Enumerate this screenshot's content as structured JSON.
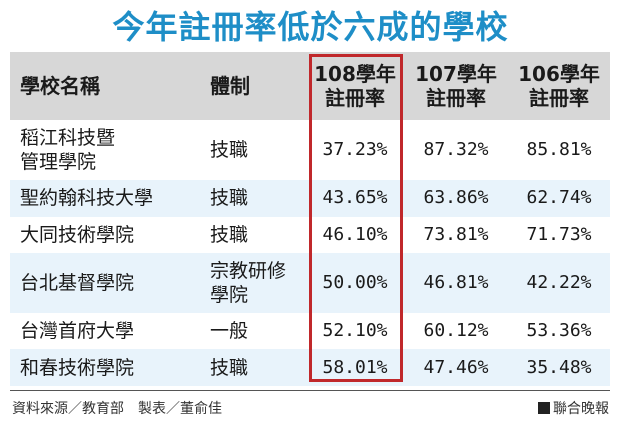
{
  "title": "今年註冊率低於六成的學校",
  "table": {
    "headers": {
      "name": "學校名稱",
      "type": "體制",
      "y108": "108學年\n註冊率",
      "y107": "107學年\n註冊率",
      "y106": "106學年\n註冊率"
    },
    "rows": [
      {
        "name": "稻江科技暨\n管理學院",
        "type": "技職",
        "y108": "37.23%",
        "y107": "87.32%",
        "y106": "85.81%"
      },
      {
        "name": "聖約翰科技大學",
        "type": "技職",
        "y108": "43.65%",
        "y107": "63.86%",
        "y106": "62.74%"
      },
      {
        "name": "大同技術學院",
        "type": "技職",
        "y108": "46.10%",
        "y107": "73.81%",
        "y106": "71.73%"
      },
      {
        "name": "台北基督學院",
        "type": "宗教研修\n學院",
        "y108": "50.00%",
        "y107": "46.81%",
        "y106": "42.22%"
      },
      {
        "name": "台灣首府大學",
        "type": "一般",
        "y108": "52.10%",
        "y107": "60.12%",
        "y106": "53.36%"
      },
      {
        "name": "和春技術學院",
        "type": "技職",
        "y108": "58.01%",
        "y107": "47.46%",
        "y106": "35.48%"
      }
    ]
  },
  "footer": {
    "source": "資料來源／教育部　製表／董俞佳",
    "brand": "聯合晚報"
  },
  "colors": {
    "title": "#1e8ec7",
    "header_bg": "#d7d7d7",
    "alt_row_bg": "#e8f3fb",
    "highlight_border": "#c0282b"
  }
}
